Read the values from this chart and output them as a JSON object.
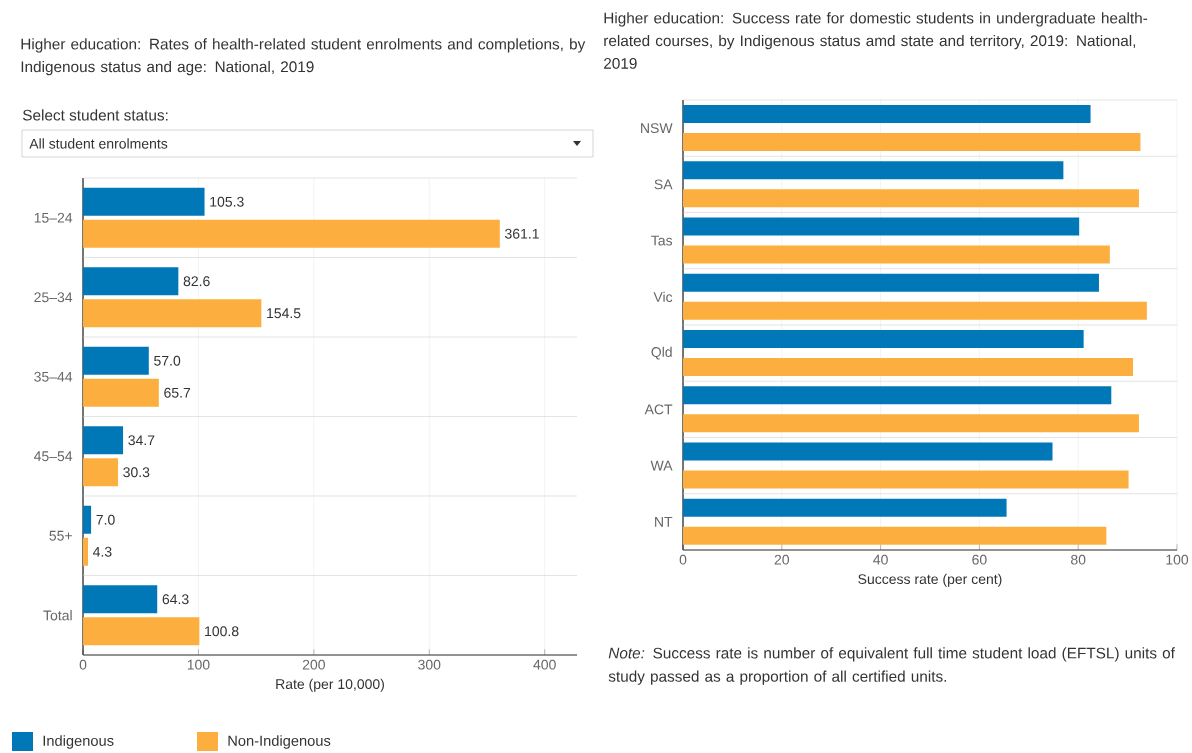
{
  "chart_data": [
    {
      "type": "bar",
      "orientation": "horizontal",
      "title": "Higher education: Rates of health-related student enrolments and completions, by Indigenous status and age: National, 2019",
      "annotations": [
        "Select student status:",
        "All student enrolments"
      ],
      "categories": [
        "15–24",
        "25–34",
        "35–44",
        "45–54",
        "55+",
        "Total"
      ],
      "series": [
        {
          "name": "Indigenous",
          "color": "#0077b6",
          "values": [
            105.3,
            82.6,
            57.0,
            34.7,
            7.0,
            64.3
          ],
          "value_labels": [
            "105.3",
            "82.6",
            "57.0",
            "34.7",
            "7.0",
            "64.3"
          ]
        },
        {
          "name": "Non-Indigenous",
          "color": "#fcaf3f",
          "values": [
            361.1,
            154.5,
            65.7,
            30.3,
            4.3,
            100.8
          ],
          "value_labels": [
            "361.1",
            "154.5",
            "65.7",
            "30.3",
            "4.3",
            "100.8"
          ]
        }
      ],
      "xlabel": "Rate (per 10,000)",
      "xlim": [
        0,
        428
      ],
      "xticks": [
        0,
        100,
        200,
        300,
        400
      ],
      "grid": "x",
      "legend": "bottom left"
    },
    {
      "type": "bar",
      "orientation": "horizontal",
      "title": "Higher education: Success rate for domestic students in undergraduate health-related courses, by Indigenous status amd state and territory, 2019: National, 2019",
      "annotations": [
        "*Note:* Success rate is number of equivalent full time student load (EFTSL) units of study passed as a proportion of all certified units."
      ],
      "categories": [
        "NSW",
        "SA",
        "Tas",
        "Vic",
        "Qld",
        "ACT",
        "WA",
        "NT"
      ],
      "series": [
        {
          "color": "#0077b6",
          "values": [
            82.5,
            77.0,
            80.2,
            84.2,
            81.1,
            86.7,
            74.8,
            65.5
          ]
        },
        {
          "color": "#fcaf3f",
          "values": [
            92.6,
            92.3,
            86.4,
            93.9,
            91.1,
            92.3,
            90.2,
            85.7
          ]
        }
      ],
      "xlabel": "Success rate (per cent)",
      "xlim": [
        0,
        100
      ],
      "xticks": [
        0,
        20,
        40,
        60,
        80,
        100
      ],
      "grid": "x"
    }
  ]
}
